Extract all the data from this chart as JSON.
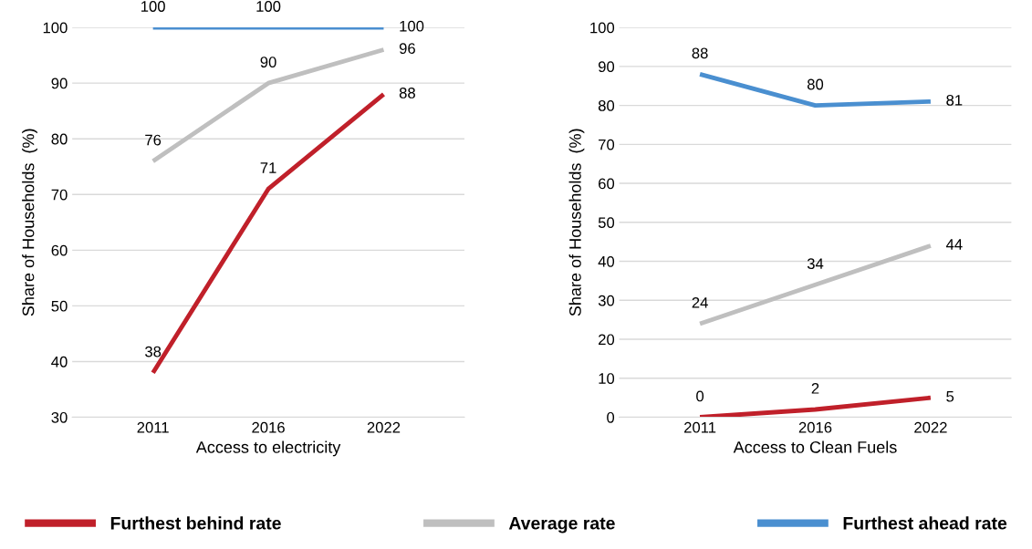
{
  "chart_data": [
    {
      "type": "line",
      "xlabel": "Access to electricity",
      "ylabel": "Share of Households  (%)",
      "categories": [
        "2011",
        "2016",
        "2022"
      ],
      "ylim": [
        30,
        100
      ],
      "yticks": [
        30,
        40,
        50,
        60,
        70,
        80,
        90,
        100
      ],
      "grid": "y",
      "data_labels": true,
      "legend": "bottom",
      "series": [
        {
          "name": "Furthest behind rate",
          "color": "#c0202a",
          "values": [
            38,
            71,
            88
          ]
        },
        {
          "name": "Average rate",
          "color": "#bfbfbf",
          "values": [
            76,
            90,
            96
          ]
        },
        {
          "name": "Furthest ahead rate",
          "color": "#4a8fd0",
          "values": [
            100,
            100,
            100
          ]
        }
      ]
    },
    {
      "type": "line",
      "xlabel": "Access to Clean Fuels",
      "ylabel": "Share of Households  (%)",
      "categories": [
        "2011",
        "2016",
        "2022"
      ],
      "ylim": [
        0,
        100
      ],
      "yticks": [
        0,
        10,
        20,
        30,
        40,
        50,
        60,
        70,
        80,
        90,
        100
      ],
      "grid": "y",
      "data_labels": true,
      "series": [
        {
          "color": "#c0202a",
          "values": [
            0,
            2,
            5
          ]
        },
        {
          "color": "#bfbfbf",
          "values": [
            24,
            34,
            44
          ]
        },
        {
          "color": "#4a8fd0",
          "values": [
            88,
            80,
            81
          ]
        }
      ]
    }
  ]
}
